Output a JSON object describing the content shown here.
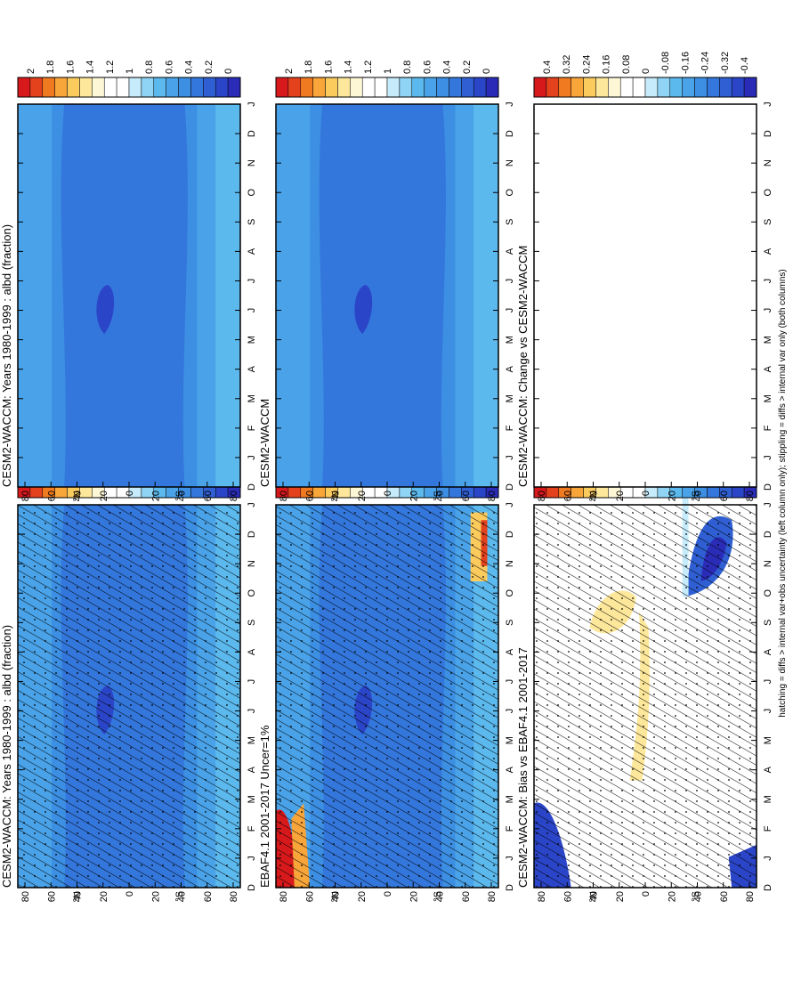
{
  "footnote": "hatching = diffs > internal var+obs uncertainty (left column only); stippling = diffs > internal var only (both columns)",
  "month_labels": [
    "D",
    "J",
    "F",
    "M",
    "A",
    "M",
    "J",
    "J",
    "A",
    "S",
    "O",
    "N",
    "D",
    "J"
  ],
  "lat_labels": [
    "80",
    "60",
    "40",
    "20",
    "0",
    "20",
    "40",
    "60",
    "80"
  ],
  "lat_hemi_labels": [
    "°N",
    "°S"
  ],
  "colorbars": {
    "main": {
      "labels": [
        "2",
        "1.8",
        "1.6",
        "1.4",
        "1.2",
        "1",
        "0.8",
        "0.6",
        "0.4",
        "0.2",
        "0"
      ],
      "colors": [
        "#d7191c",
        "#e3421d",
        "#f07a20",
        "#f8a53a",
        "#fccb5e",
        "#fde79a",
        "#fef7d6",
        "#ffffff",
        "#ffffff",
        "#c6ebfb",
        "#8fd3f5",
        "#5cb9ee",
        "#4aa3e8",
        "#3c8fe2",
        "#3477dc",
        "#2f5fd2",
        "#2b45c8",
        "#2a2cb8"
      ]
    },
    "diff": {
      "labels": [
        "0.4",
        "0.32",
        "0.24",
        "0.16",
        "0.08",
        "0",
        "-0.08",
        "-0.16",
        "-0.24",
        "-0.32",
        "-0.4"
      ],
      "colors": [
        "#d7191c",
        "#e3421d",
        "#f07a20",
        "#f8a53a",
        "#fccb5e",
        "#fde79a",
        "#fef7d6",
        "#ffffff",
        "#ffffff",
        "#c6ebfb",
        "#8fd3f5",
        "#5cb9ee",
        "#4aa3e8",
        "#3c8fe2",
        "#3477dc",
        "#2f5fd2",
        "#2b45c8",
        "#2a2cb8"
      ]
    }
  },
  "panels": [
    {
      "title": "CESM2-WACCM: Years 1980-1999 : albd (fraction)",
      "colorbar": "main",
      "field": "model",
      "hatching": true,
      "stippling": true
    },
    {
      "title": "EBAF4.1 2001-2017 Uncer=1%",
      "colorbar": "main",
      "field": "obs",
      "hatching": true,
      "stippling": true
    },
    {
      "title": "CESM2-WACCM: Bias vs EBAF4.1 2001-2017",
      "colorbar": "diff",
      "field": "bias",
      "hatching": true,
      "stippling": true
    },
    {
      "title": "CESM2-WACCM: Years 1980-1999 : albd (fraction)",
      "colorbar": "main",
      "field": "model",
      "hatching": false,
      "stippling": false
    },
    {
      "title": "CESM2-WACCM",
      "colorbar": "main",
      "field": "model",
      "hatching": false,
      "stippling": false
    },
    {
      "title": "CESM2-WACCM: Change vs CESM2-WACCM",
      "colorbar": "diff",
      "field": "blank",
      "hatching": false,
      "stippling": false
    }
  ],
  "chart_data": [
    {
      "type": "heatmap",
      "title": "CESM2-WACCM: Years 1980-1999 : albd (fraction)",
      "x": [
        "D",
        "J",
        "F",
        "M",
        "A",
        "M",
        "J",
        "J",
        "A",
        "S",
        "O",
        "N",
        "D",
        "J"
      ],
      "y": [
        "80°S",
        "60°S",
        "40°S",
        "20°S",
        "0",
        "20°N",
        "40°N",
        "60°N",
        "80°N"
      ],
      "zlim": [
        0,
        2
      ],
      "values_note_range": [
        0.15,
        0.9
      ]
    },
    {
      "type": "heatmap",
      "title": "EBAF4.1 2001-2017 Uncer=1%",
      "x": [
        "D",
        "J",
        "F",
        "M",
        "A",
        "M",
        "J",
        "J",
        "A",
        "S",
        "O",
        "N",
        "D",
        "J"
      ],
      "y": [
        "80°S",
        "60°S",
        "40°S",
        "20°S",
        "0",
        "20°N",
        "40°N",
        "60°N",
        "80°N"
      ],
      "zlim": [
        0,
        2
      ],
      "values_note_range": [
        0.15,
        2.0
      ]
    },
    {
      "type": "heatmap",
      "title": "CESM2-WACCM: Bias vs EBAF4.1 2001-2017",
      "x": [
        "D",
        "J",
        "F",
        "M",
        "A",
        "M",
        "J",
        "J",
        "A",
        "S",
        "O",
        "N",
        "D",
        "J"
      ],
      "y": [
        "80°S",
        "60°S",
        "40°S",
        "20°S",
        "0",
        "20°N",
        "40°N",
        "60°N",
        "80°N"
      ],
      "zlim": [
        -0.4,
        0.4
      ]
    },
    {
      "type": "heatmap",
      "title": "CESM2-WACCM: Years 1980-1999 : albd (fraction)",
      "x": [
        "D",
        "J",
        "F",
        "M",
        "A",
        "M",
        "J",
        "J",
        "A",
        "S",
        "O",
        "N",
        "D",
        "J"
      ],
      "y": [
        "80°S",
        "60°S",
        "40°S",
        "20°S",
        "0",
        "20°N",
        "40°N",
        "60°N",
        "80°N"
      ],
      "zlim": [
        0,
        2
      ]
    },
    {
      "type": "heatmap",
      "title": "CESM2-WACCM",
      "x": [
        "D",
        "J",
        "F",
        "M",
        "A",
        "M",
        "J",
        "J",
        "A",
        "S",
        "O",
        "N",
        "D",
        "J"
      ],
      "y": [
        "80°S",
        "60°S",
        "40°S",
        "20°S",
        "0",
        "20°N",
        "40°N",
        "60°N",
        "80°N"
      ],
      "zlim": [
        0,
        2
      ]
    },
    {
      "type": "heatmap",
      "title": "CESM2-WACCM: Change vs CESM2-WACCM",
      "x": [
        "D",
        "J",
        "F",
        "M",
        "A",
        "M",
        "J",
        "J",
        "A",
        "S",
        "O",
        "N",
        "D",
        "J"
      ],
      "y": [
        "80°S",
        "60°S",
        "40°S",
        "20°S",
        "0",
        "20°N",
        "40°N",
        "60°N",
        "80°N"
      ],
      "zlim": [
        -0.4,
        0.4
      ]
    }
  ]
}
